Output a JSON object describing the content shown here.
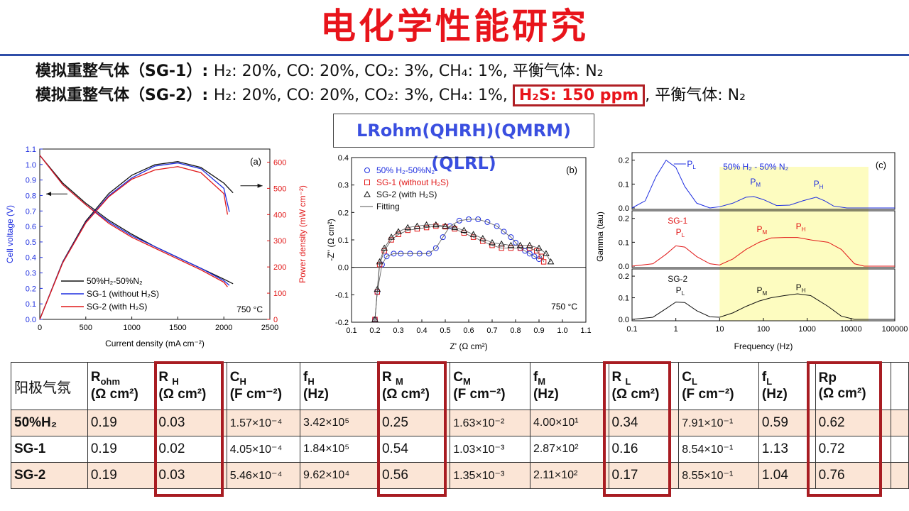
{
  "title": "电化学性能研究",
  "gas_lines": [
    {
      "label": "模拟重整气体（",
      "id": "SG-1",
      "close": "）: ",
      "text": "H₂: 20%, CO: 20%, CO₂: 3%, CH₄: 1%, 平衡气体: N₂",
      "highlight": ""
    },
    {
      "label": "模拟重整气体（",
      "id": "SG-2",
      "close": "）: ",
      "text": "H₂: 20%, CO: 20%, CO₂: 3%, CH₄: 1%,",
      "highlight": "H₂S: 150 ppm",
      "tail": ", 平衡气体: N₂"
    }
  ],
  "formula": "LRohm(QHRH)(QMRM)(QLRL)",
  "colors": {
    "blue": "#1f2fe0",
    "red": "#e11818",
    "black": "#111111",
    "accent": "#a81c22",
    "rule": "#2f4ea8"
  },
  "chart_data": [
    {
      "panel": "(a)",
      "type": "line",
      "xlabel": "Current density (mA cm⁻²)",
      "ylabel": "Cell voltage (V)",
      "y2label": "Power density (mW cm⁻²)",
      "xlim": [
        0,
        2500
      ],
      "ylim": [
        0.0,
        1.1
      ],
      "y2lim": [
        0,
        650
      ],
      "xticks": [
        0,
        500,
        1000,
        1500,
        2000,
        2500
      ],
      "yticks": [
        0.0,
        0.1,
        0.2,
        0.3,
        0.4,
        0.5,
        0.6,
        0.7,
        0.8,
        0.9,
        1.0,
        1.1
      ],
      "y2ticks": [
        0,
        100,
        200,
        300,
        400,
        500,
        600
      ],
      "annotation": "750 °C",
      "series": [
        {
          "name": "50%H₂-50%N₂",
          "color": "#111111",
          "voltage": {
            "x": [
              0,
              250,
              500,
              750,
              1000,
              1250,
              1500,
              1750,
              2000,
              2100
            ],
            "y": [
              1.06,
              0.88,
              0.75,
              0.64,
              0.55,
              0.47,
              0.4,
              0.33,
              0.26,
              0.23
            ]
          },
          "power": {
            "x": [
              0,
              250,
              500,
              750,
              1000,
              1250,
              1500,
              1750,
              2000,
              2100
            ],
            "y": [
              0,
              220,
              375,
              480,
              550,
              590,
              602,
              580,
              520,
              483
            ]
          }
        },
        {
          "name": "SG-1 (without H₂S)",
          "color": "#1f2fe0",
          "voltage": {
            "x": [
              0,
              250,
              500,
              750,
              1000,
              1250,
              1500,
              1750,
              2000,
              2060
            ],
            "y": [
              1.06,
              0.87,
              0.74,
              0.63,
              0.54,
              0.47,
              0.4,
              0.33,
              0.25,
              0.22
            ]
          },
          "power": {
            "x": [
              0,
              250,
              500,
              750,
              1000,
              1250,
              1500,
              1750,
              2000,
              2060
            ],
            "y": [
              0,
              218,
              370,
              472,
              540,
              585,
              597,
              575,
              500,
              410
            ]
          }
        },
        {
          "name": "SG-2 (with H₂S)",
          "color": "#e11818",
          "voltage": {
            "x": [
              0,
              250,
              500,
              750,
              1000,
              1250,
              1500,
              1750,
              2000,
              2040
            ],
            "y": [
              1.06,
              0.87,
              0.74,
              0.62,
              0.53,
              0.46,
              0.39,
              0.32,
              0.24,
              0.21
            ]
          },
          "power": {
            "x": [
              0,
              250,
              500,
              750,
              1000,
              1250,
              1500,
              1750,
              2000,
              2040
            ],
            "y": [
              0,
              216,
              368,
              468,
              535,
              570,
              583,
              560,
              480,
              400
            ]
          }
        }
      ]
    },
    {
      "panel": "(b)",
      "type": "scatter",
      "xlabel": "Z' (Ω cm²)",
      "ylabel": "-Z'' (Ω cm²)",
      "xlim": [
        0.1,
        1.1
      ],
      "ylim": [
        -0.2,
        0.4
      ],
      "xticks": [
        0.1,
        0.2,
        0.3,
        0.4,
        0.5,
        0.6,
        0.7,
        0.8,
        0.9,
        1.0,
        1.1
      ],
      "yticks": [
        -0.2,
        -0.1,
        0.0,
        0.1,
        0.2,
        0.3,
        0.4
      ],
      "annotation": "750 °C",
      "series": [
        {
          "name": "50% H₂-50%N₂",
          "marker": "circle",
          "color": "#1f2fe0",
          "x": [
            0.2,
            0.21,
            0.23,
            0.25,
            0.28,
            0.31,
            0.35,
            0.39,
            0.43,
            0.46,
            0.49,
            0.52,
            0.56,
            0.6,
            0.64,
            0.68,
            0.72,
            0.75,
            0.78,
            0.8,
            0.82,
            0.84,
            0.86,
            0.88,
            0.9
          ],
          "y": [
            -0.19,
            -0.09,
            0.01,
            0.04,
            0.05,
            0.05,
            0.05,
            0.05,
            0.05,
            0.07,
            0.11,
            0.15,
            0.17,
            0.175,
            0.175,
            0.165,
            0.15,
            0.13,
            0.11,
            0.09,
            0.07,
            0.06,
            0.05,
            0.04,
            0.03
          ]
        },
        {
          "name": "SG-1 (without H₂S)",
          "marker": "square",
          "color": "#e11818",
          "x": [
            0.2,
            0.21,
            0.22,
            0.24,
            0.27,
            0.3,
            0.34,
            0.38,
            0.42,
            0.46,
            0.5,
            0.54,
            0.58,
            0.62,
            0.66,
            0.7,
            0.74,
            0.78,
            0.82,
            0.86,
            0.89,
            0.91,
            0.92
          ],
          "y": [
            -0.19,
            -0.09,
            0.01,
            0.06,
            0.1,
            0.12,
            0.135,
            0.14,
            0.145,
            0.15,
            0.148,
            0.14,
            0.125,
            0.11,
            0.095,
            0.08,
            0.07,
            0.07,
            0.07,
            0.07,
            0.06,
            0.04,
            0.02
          ]
        },
        {
          "name": "SG-2 (with H₂S)",
          "marker": "triangle",
          "color": "#111111",
          "x": [
            0.2,
            0.21,
            0.22,
            0.24,
            0.27,
            0.3,
            0.34,
            0.38,
            0.42,
            0.46,
            0.5,
            0.54,
            0.58,
            0.62,
            0.66,
            0.7,
            0.74,
            0.78,
            0.82,
            0.86,
            0.9,
            0.93,
            0.95
          ],
          "y": [
            -0.19,
            -0.08,
            0.02,
            0.07,
            0.11,
            0.13,
            0.145,
            0.15,
            0.155,
            0.155,
            0.15,
            0.145,
            0.135,
            0.12,
            0.105,
            0.09,
            0.085,
            0.08,
            0.08,
            0.08,
            0.07,
            0.05,
            0.02
          ]
        },
        {
          "name": "Fitting",
          "marker": "line",
          "color": "#555555"
        }
      ]
    },
    {
      "panel": "(c)",
      "type": "line",
      "xscale": "log",
      "xlabel": "Frequency (Hz)",
      "ylabel": "Gamma (tau)",
      "xlim": [
        0.1,
        100000
      ],
      "xticks": [
        "0.1",
        "1",
        "10",
        "100",
        "1000",
        "10000",
        "100000"
      ],
      "yticks": [
        "0.0",
        "0.1",
        "0.2"
      ],
      "shaded_range": [
        10,
        25000
      ],
      "subplots": [
        {
          "name": "50% H₂ - 50% N₂",
          "color": "#1f2fe0",
          "ylim": [
            0,
            0.22
          ],
          "x": [
            0.1,
            0.2,
            0.35,
            0.6,
            1.0,
            1.6,
            3,
            6,
            10,
            20,
            40,
            60,
            100,
            200,
            400,
            800,
            1600,
            2500,
            4000,
            8000,
            20000,
            100000
          ],
          "y": [
            0.0,
            0.03,
            0.13,
            0.2,
            0.17,
            0.09,
            0.02,
            0.0,
            0.005,
            0.02,
            0.045,
            0.048,
            0.035,
            0.01,
            0.012,
            0.03,
            0.045,
            0.03,
            0.008,
            0.0,
            0.0,
            0.0
          ],
          "peaks": [
            "P_L",
            "P_M",
            "P_H"
          ]
        },
        {
          "name": "SG-1",
          "color": "#e11818",
          "ylim": [
            0,
            0.22
          ],
          "x": [
            0.1,
            0.3,
            0.6,
            1.0,
            1.6,
            3,
            6,
            10,
            20,
            40,
            80,
            150,
            300,
            600,
            1200,
            3000,
            6000,
            12000,
            20000,
            100000
          ],
          "y": [
            0.0,
            0.01,
            0.05,
            0.085,
            0.08,
            0.04,
            0.01,
            0.005,
            0.03,
            0.07,
            0.1,
            0.118,
            0.12,
            0.12,
            0.11,
            0.1,
            0.07,
            0.01,
            0.0,
            0.0
          ],
          "peaks": [
            "SG-1 P_L",
            "P_M",
            "P_H"
          ]
        },
        {
          "name": "SG-2",
          "color": "#111111",
          "ylim": [
            0,
            0.22
          ],
          "x": [
            0.1,
            0.3,
            0.6,
            1.0,
            1.6,
            3,
            6,
            10,
            20,
            40,
            80,
            150,
            300,
            600,
            1200,
            3000,
            6000,
            12000,
            20000,
            100000
          ],
          "y": [
            0.0,
            0.01,
            0.05,
            0.08,
            0.078,
            0.04,
            0.012,
            0.01,
            0.03,
            0.06,
            0.085,
            0.1,
            0.11,
            0.118,
            0.11,
            0.06,
            0.015,
            0.0,
            0.0,
            0.0
          ],
          "peaks": [
            "SG-2 P_L",
            "P_M",
            "P_H"
          ]
        }
      ]
    }
  ],
  "table": {
    "headers": [
      {
        "main": "阳极气氛",
        "sub": ""
      },
      {
        "main": "R",
        "sub": "ohm",
        "unit": "(Ω cm²)"
      },
      {
        "main": "R ",
        "sub": "H",
        "unit": "(Ω cm²)"
      },
      {
        "main": "C",
        "sub": "H",
        "unit": "(F cm⁻²)"
      },
      {
        "main": "f",
        "sub": "H",
        "unit": "(Hz)"
      },
      {
        "main": "R ",
        "sub": "M",
        "unit": "(Ω cm²)"
      },
      {
        "main": "C",
        "sub": "M",
        "unit": "(F cm⁻²)"
      },
      {
        "main": "f",
        "sub": "M",
        "unit": "(Hz)"
      },
      {
        "main": "R ",
        "sub": "L",
        "unit": "(Ω cm²)"
      },
      {
        "main": "C",
        "sub": "L",
        "unit": "(F cm⁻²)"
      },
      {
        "main": "f",
        "sub": "L",
        "unit": "(Hz)"
      },
      {
        "main": "Rp",
        "sub": "",
        "unit": "(Ω cm²)"
      },
      {
        "main": "",
        "sub": ""
      }
    ],
    "rows": [
      [
        "50%H₂",
        "0.19",
        "0.03",
        "1.57×10⁻⁴",
        "3.42×10⁵",
        "0.25",
        "1.63×10⁻²",
        "4.00×10¹",
        "0.34",
        "7.91×10⁻¹",
        "0.59",
        "0.62",
        ""
      ],
      [
        "SG-1",
        "0.19",
        "0.02",
        "4.05×10⁻⁴",
        "1.84×10⁵",
        "0.54",
        "1.03×10⁻³",
        "2.87×10²",
        "0.16",
        "8.54×10⁻¹",
        "1.13",
        "0.72",
        ""
      ],
      [
        "SG-2",
        "0.19",
        "0.03",
        "5.46×10⁻⁴",
        "9.62×10⁴",
        "0.56",
        "1.35×10⁻³",
        "2.11×10²",
        "0.17",
        "8.55×10⁻¹",
        "1.04",
        "0.76",
        ""
      ]
    ]
  }
}
